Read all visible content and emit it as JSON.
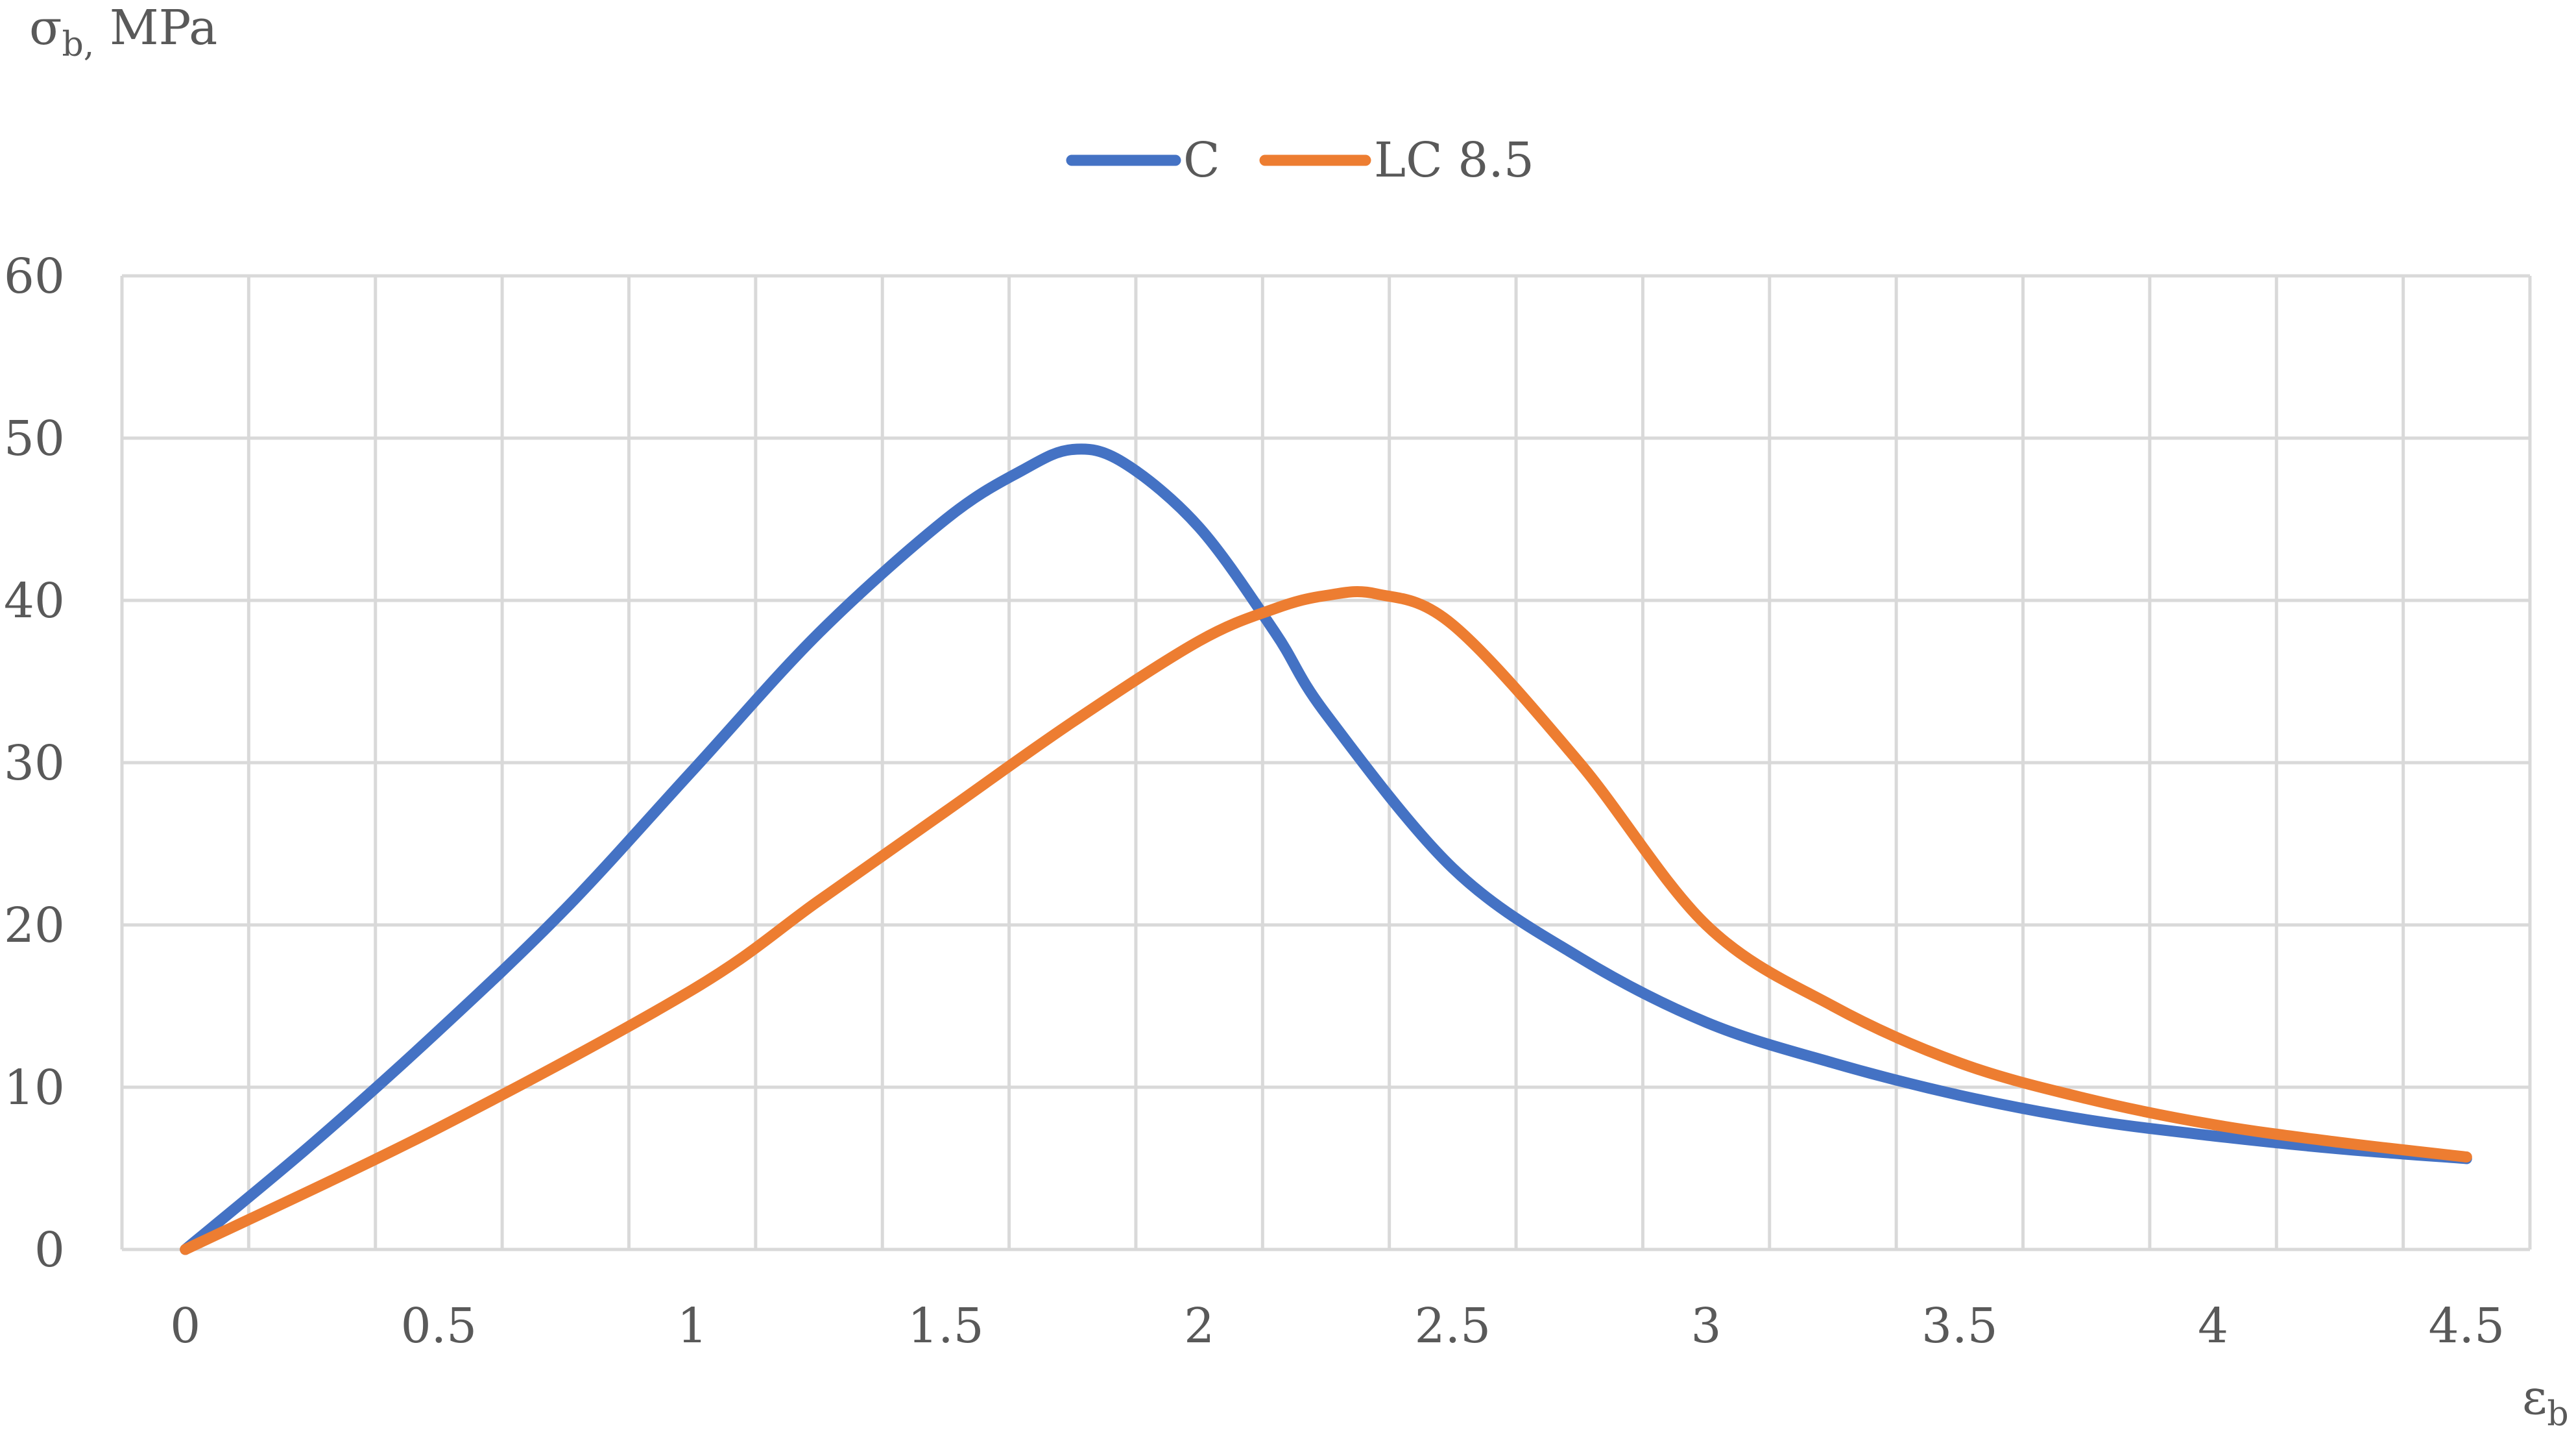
{
  "chart_data": {
    "type": "line",
    "ylabel": {
      "symbol": "σ",
      "subscript": "b,",
      "unit": " MPa"
    },
    "xlabel": {
      "symbol": "ε",
      "subscript": "b"
    },
    "xlim": [
      -0.125,
      4.625
    ],
    "ylim": [
      0,
      60
    ],
    "x_ticks": [
      "0",
      "0.5",
      "1",
      "1.5",
      "2",
      "2.5",
      "3",
      "3.5",
      "4",
      "4.5"
    ],
    "x_tick_values": [
      0,
      0.5,
      1,
      1.5,
      2,
      2.5,
      3,
      3.5,
      4,
      4.5
    ],
    "y_ticks": [
      "0",
      "10",
      "20",
      "30",
      "40",
      "50",
      "60"
    ],
    "y_tick_values": [
      0,
      10,
      20,
      30,
      40,
      50,
      60
    ],
    "grid": true,
    "legend_position": "top-center",
    "series": [
      {
        "name": "C",
        "color": "#4472C4",
        "x": [
          0,
          0.25,
          0.5,
          0.75,
          1.0,
          1.25,
          1.5,
          1.65,
          1.75,
          1.85,
          2.0,
          2.15,
          2.25,
          2.5,
          2.75,
          3.0,
          3.25,
          3.5,
          3.75,
          4.0,
          4.25,
          4.5
        ],
        "y": [
          0,
          6.5,
          13.5,
          21,
          29.5,
          38,
          45,
          48,
          49.3,
          48.5,
          44.5,
          38,
          33,
          23.5,
          18,
          14,
          11.5,
          9.5,
          8,
          7,
          6.2,
          5.6
        ]
      },
      {
        "name": "LC 8.5",
        "color": "#ED7D31",
        "x": [
          0,
          0.5,
          1.0,
          1.25,
          1.5,
          1.75,
          2.0,
          2.15,
          2.25,
          2.35,
          2.5,
          2.75,
          3.0,
          3.25,
          3.5,
          3.75,
          4.0,
          4.25,
          4.5
        ],
        "y": [
          0,
          7.5,
          16,
          21.5,
          27,
          32.5,
          37.5,
          39.5,
          40.3,
          40.4,
          38.5,
          30,
          20,
          15,
          11.5,
          9.3,
          7.7,
          6.6,
          5.7
        ]
      }
    ]
  }
}
